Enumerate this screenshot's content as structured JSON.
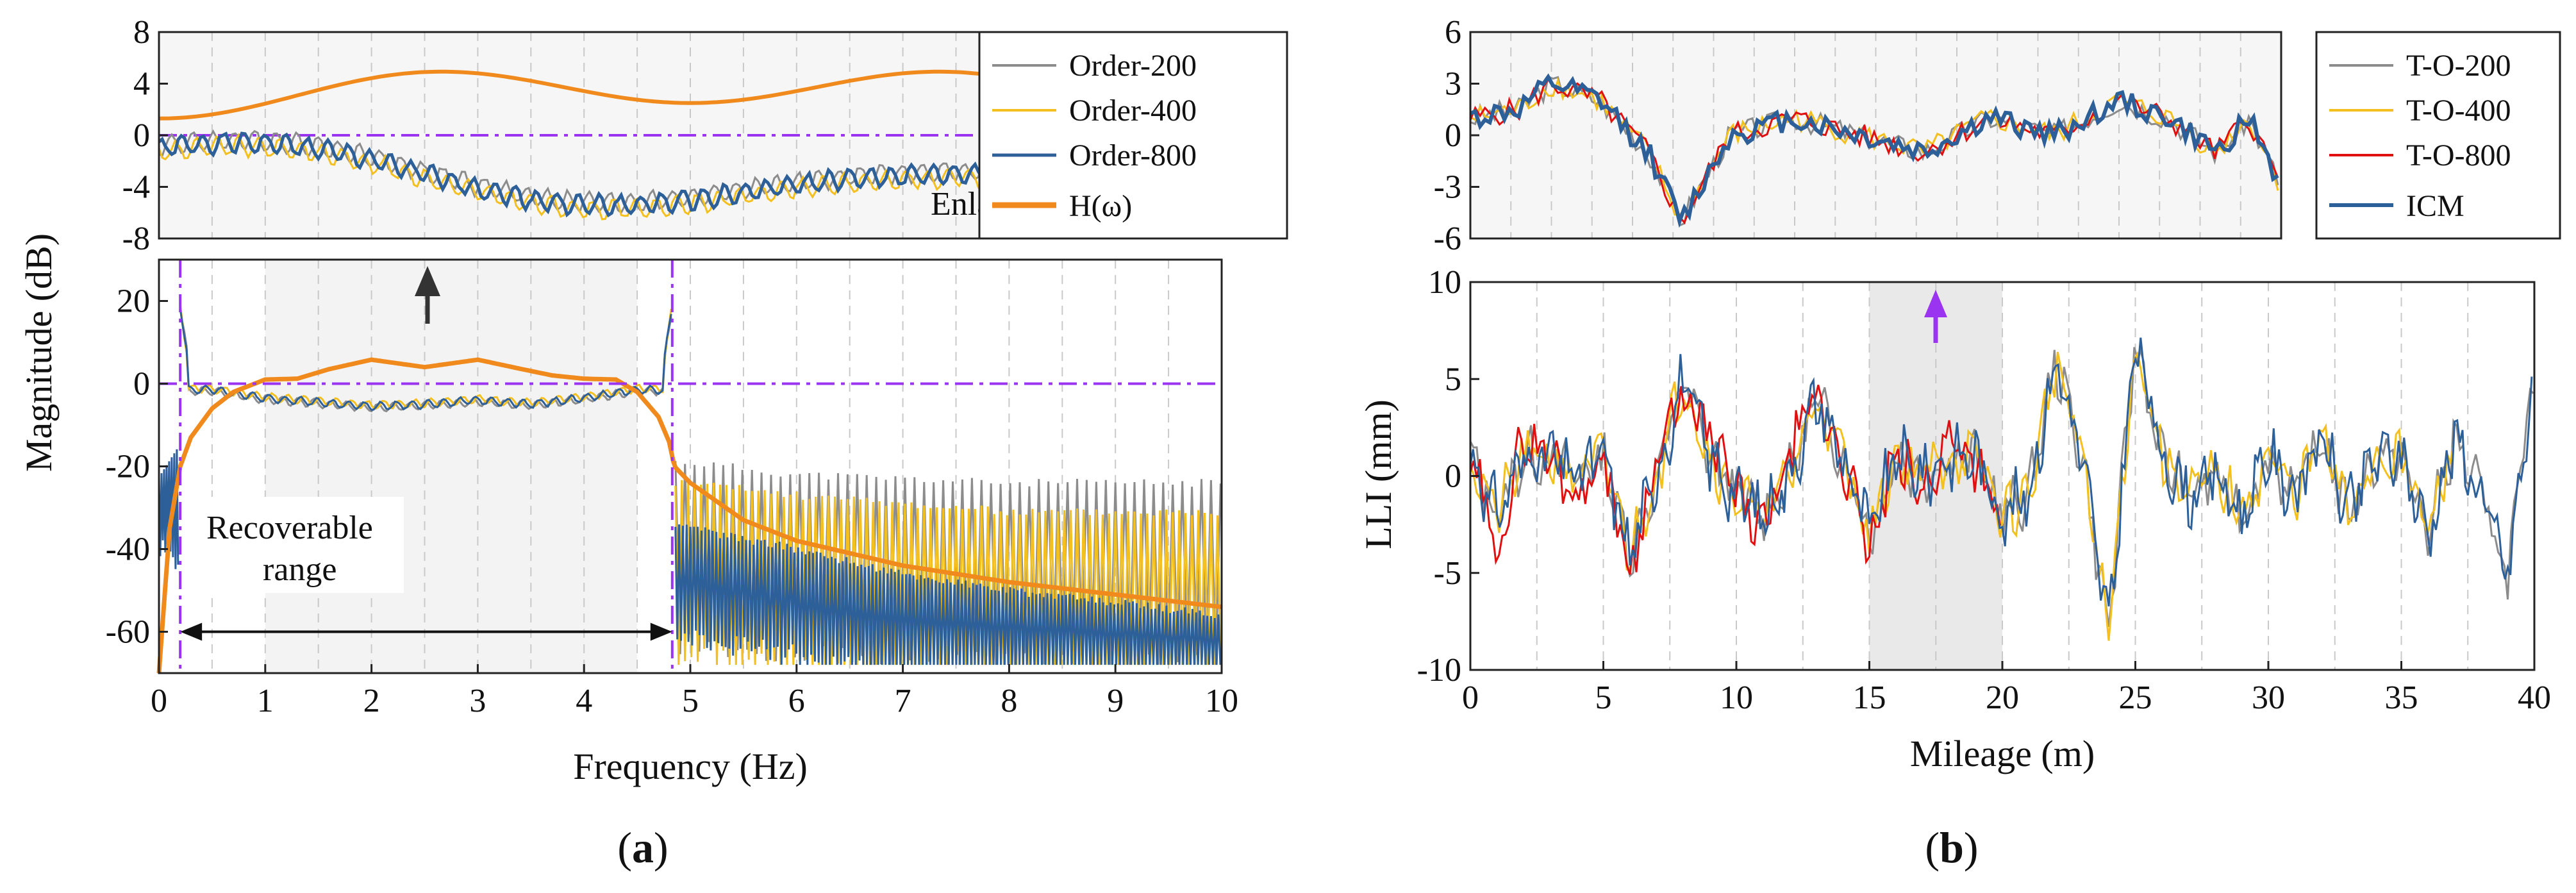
{
  "chart_data": [
    {
      "id": "a",
      "type": "line",
      "caption": "(a)",
      "xlabel": "Frequency (Hz)",
      "ylabel": "Magnitude (dB)",
      "xlim": [
        0,
        10
      ],
      "xticks": [
        "0",
        "1",
        "2",
        "3",
        "4",
        "5",
        "6",
        "7",
        "8",
        "9",
        "10"
      ],
      "main": {
        "ylim": [
          -70,
          30
        ],
        "yticks": [
          "20",
          "0",
          "-20",
          "-40",
          "-60"
        ],
        "reference_line": 0,
        "recoverable_range": [
          0.2,
          4.83
        ],
        "annotation_line1": "Recoverable",
        "annotation_line2": "range"
      },
      "inset": {
        "ylim": [
          -8,
          8
        ],
        "yticks": [
          "8",
          "4",
          "0",
          "-4",
          "-8"
        ],
        "label": "Enlarged",
        "reference_line": 0
      },
      "legend": [
        "Order-200",
        "Order-400",
        "Order-800",
        "H(ω)"
      ],
      "colors": {
        "order200": "#8c8c8c",
        "order400": "#f4c020",
        "order800": "#2d5f98",
        "H": "#f08a1c",
        "marker": "#9b34f0",
        "arrow": "#333333"
      },
      "series": [
        {
          "name": "H(ω)",
          "x": [
            0,
            0.1,
            0.2,
            0.3,
            0.5,
            0.7,
            1.0,
            1.3,
            1.6,
            2.0,
            2.5,
            3.0,
            3.4,
            3.7,
            4.0,
            4.3,
            4.5,
            4.7,
            4.8,
            4.85,
            5.0,
            5.5,
            6,
            7,
            8,
            9,
            10
          ],
          "y": [
            -70,
            -35,
            -20,
            -13,
            -6,
            -2,
            1.0,
            1.2,
            3.5,
            5.8,
            4.0,
            5.8,
            3.6,
            2.0,
            1.2,
            1.0,
            -2,
            -8,
            -14,
            -20,
            -24,
            -33,
            -38,
            -44,
            -48,
            -51,
            -54
          ]
        },
        {
          "name": "Order-200",
          "envelope_top": [
            -20,
            -23,
            -24,
            -25,
            -25,
            -25
          ],
          "envelope_x": [
            5,
            6,
            7,
            8,
            9,
            10
          ]
        },
        {
          "name": "Order-400",
          "envelope_top": [
            -25,
            -28,
            -30,
            -32,
            -32,
            -32
          ],
          "envelope_x": [
            5,
            6,
            7,
            8,
            9,
            10
          ]
        },
        {
          "name": "Order-800",
          "passband_y": [
            -1.5,
            -3.5,
            -5.5,
            -5.0,
            -4.0,
            -5.0,
            -3.5,
            -1.5
          ],
          "passband_x": [
            0.5,
            1.0,
            2.0,
            2.5,
            3.0,
            3.5,
            4.0,
            4.5
          ],
          "peak_edges": 19
        }
      ]
    },
    {
      "id": "b",
      "type": "line",
      "caption": "(b)",
      "xlabel": "Mileage (m)",
      "ylabel": "LLI (mm)",
      "xlim": [
        0,
        40
      ],
      "xticks": [
        "0",
        "5",
        "10",
        "15",
        "20",
        "25",
        "30",
        "35",
        "40"
      ],
      "main": {
        "ylim": [
          -10,
          10
        ],
        "yticks": [
          "10",
          "5",
          "0",
          "-5",
          "-10"
        ],
        "highlight_range": [
          15,
          20
        ]
      },
      "inset": {
        "ylim": [
          -6,
          6
        ],
        "yticks": [
          "6",
          "3",
          "0",
          "-3",
          "-6"
        ]
      },
      "legend": [
        "T-O-200",
        "T-O-400",
        "T-O-800",
        "ICM"
      ],
      "colors": {
        "to200": "#8c8c8c",
        "to400": "#f4c020",
        "to800": "#e01010",
        "icm": "#2d5f98",
        "arrow": "#9b34f0"
      },
      "series": [
        {
          "name": "ICM",
          "x": [
            0,
            1,
            2,
            3,
            4,
            5,
            6,
            7,
            8,
            9,
            10,
            11,
            12,
            13,
            14,
            15,
            16,
            17,
            18,
            19,
            20,
            21,
            22,
            23,
            24,
            25,
            26,
            27,
            28,
            29,
            30,
            31,
            32,
            33,
            34,
            35,
            36,
            37,
            38,
            39,
            40
          ],
          "y": [
            1,
            -2,
            1,
            1,
            0,
            1,
            -4,
            0,
            5,
            1,
            -1,
            -2,
            0,
            4,
            1,
            -3,
            1,
            0,
            1,
            1,
            -2,
            -1,
            6,
            1,
            -8,
            7,
            1,
            -1,
            0,
            -2,
            1,
            -1,
            2,
            -2,
            1,
            1,
            -3,
            2,
            -1,
            -5,
            5
          ]
        },
        {
          "name": "T-O-800",
          "x": [
            0,
            1,
            2,
            3,
            4,
            5,
            6,
            7,
            8,
            9,
            10,
            11,
            12,
            13,
            14,
            15,
            16,
            17,
            18,
            19,
            20
          ],
          "y": [
            1,
            -4,
            2,
            1,
            -1,
            1,
            -5,
            1,
            4,
            2,
            -1,
            -3,
            1,
            4,
            1,
            -4,
            1,
            -1,
            2,
            1,
            -3
          ]
        }
      ]
    }
  ]
}
